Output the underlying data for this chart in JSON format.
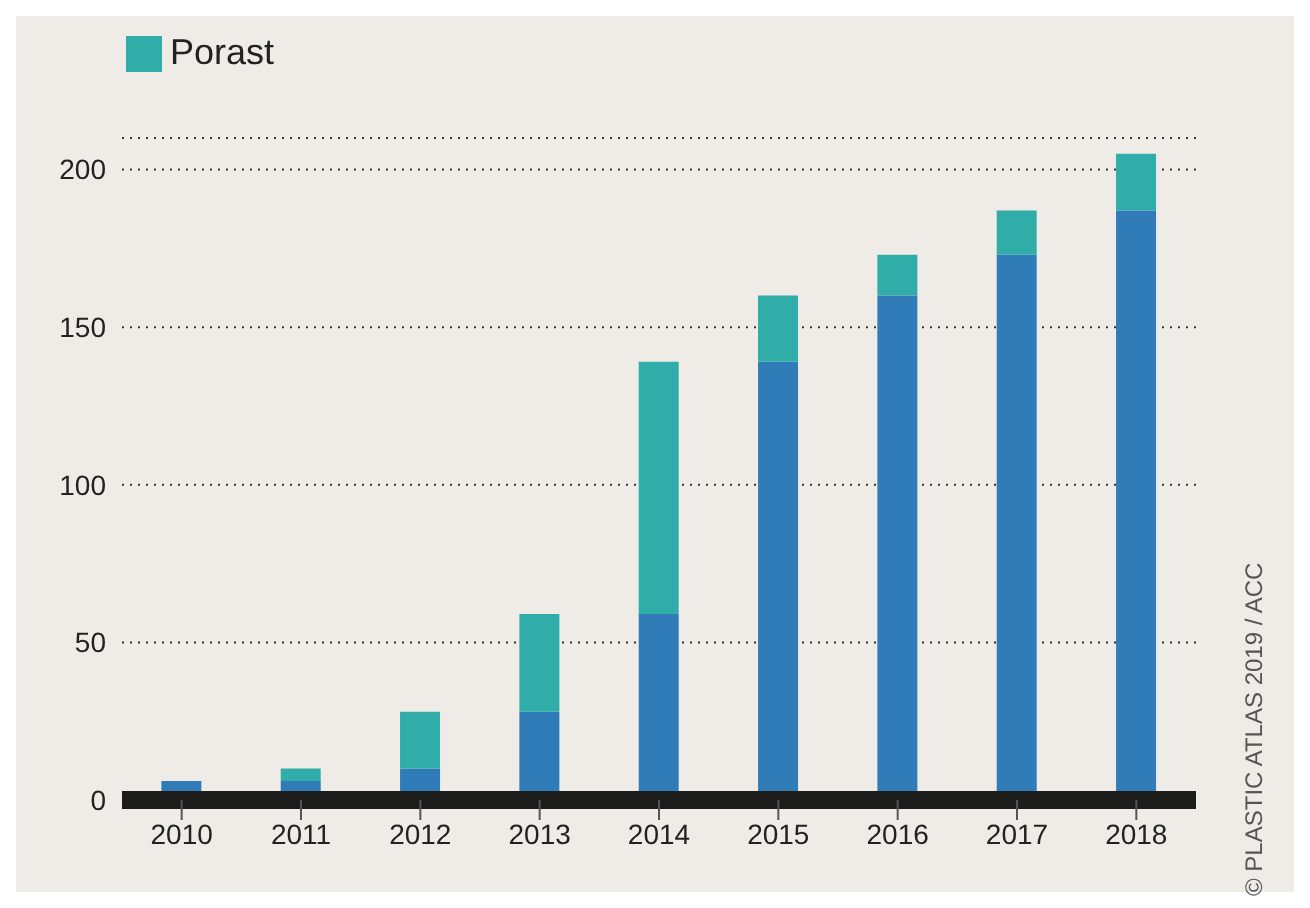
{
  "chart_data": {
    "type": "bar",
    "stacked": true,
    "categories": [
      "2010",
      "2011",
      "2012",
      "2013",
      "2014",
      "2015",
      "2016",
      "2017",
      "2018"
    ],
    "series": [
      {
        "color": "#307cb8",
        "values": [
          6,
          6,
          10,
          28,
          59,
          139,
          160,
          173,
          187
        ]
      },
      {
        "name": "Porast",
        "color": "#30aca9",
        "values": [
          null,
          4,
          18,
          31,
          80,
          21,
          13,
          14,
          18
        ]
      }
    ],
    "ylim": [
      0,
      210
    ],
    "yticks": [
      0,
      50,
      100,
      150,
      200
    ],
    "grid": "y",
    "legend": "top left",
    "annotations": [
      "© PLASTIC ATLAS 2019 / ACC"
    ]
  }
}
